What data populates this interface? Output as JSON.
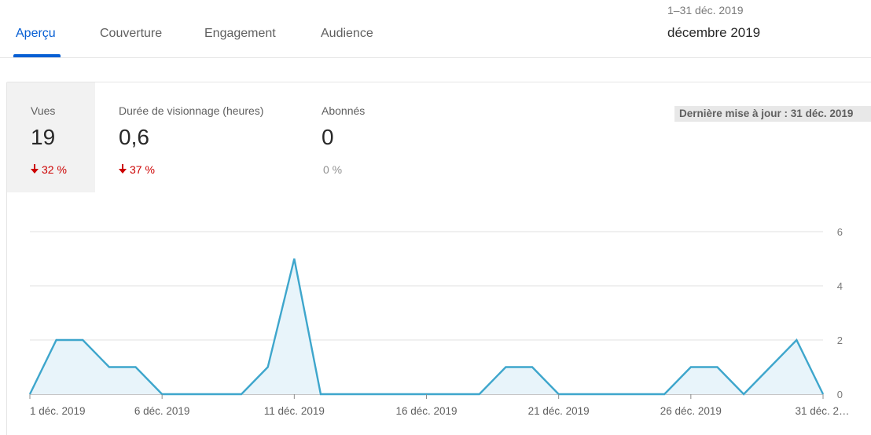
{
  "tabs": [
    {
      "label": "Aperçu",
      "active": true
    },
    {
      "label": "Couverture",
      "active": false
    },
    {
      "label": "Engagement",
      "active": false
    },
    {
      "label": "Audience",
      "active": false
    }
  ],
  "period": {
    "range": "1–31 déc. 2019",
    "label": "décembre 2019"
  },
  "metrics": [
    {
      "label": "Vues",
      "value": "19",
      "delta": "32 %",
      "trend": "down"
    },
    {
      "label": "Durée de visionnage (heures)",
      "value": "0,6",
      "delta": "37 %",
      "trend": "down"
    },
    {
      "label": "Abonnés",
      "value": "0",
      "delta": "0 %",
      "trend": "flat"
    }
  ],
  "last_update": "Dernière mise à jour : 31 déc. 2019",
  "colors": {
    "accent": "#065fd4",
    "line": "#3ea6cc",
    "area": "#e8f4fa",
    "negative": "#cc0000"
  },
  "chart_data": {
    "type": "area",
    "x": [
      "1 déc. 2019",
      "2 déc. 2019",
      "3 déc. 2019",
      "4 déc. 2019",
      "5 déc. 2019",
      "6 déc. 2019",
      "7 déc. 2019",
      "8 déc. 2019",
      "9 déc. 2019",
      "10 déc. 2019",
      "11 déc. 2019",
      "12 déc. 2019",
      "13 déc. 2019",
      "14 déc. 2019",
      "15 déc. 2019",
      "16 déc. 2019",
      "17 déc. 2019",
      "18 déc. 2019",
      "19 déc. 2019",
      "20 déc. 2019",
      "21 déc. 2019",
      "22 déc. 2019",
      "23 déc. 2019",
      "24 déc. 2019",
      "25 déc. 2019",
      "26 déc. 2019",
      "27 déc. 2019",
      "28 déc. 2019",
      "29 déc. 2019",
      "30 déc. 2019",
      "31 déc. 2019"
    ],
    "series": [
      {
        "values": [
          0,
          2,
          2,
          1,
          1,
          0,
          0,
          0,
          0,
          1,
          5,
          0,
          0,
          0,
          0,
          0,
          0,
          0,
          1,
          1,
          0,
          0,
          0,
          0,
          0,
          1,
          1,
          0,
          1,
          2,
          0
        ]
      }
    ],
    "x_ticks": [
      "1 déc. 2019",
      "6 déc. 2019",
      "11 déc. 2019",
      "16 déc. 2019",
      "21 déc. 2019",
      "26 déc. 2019",
      "31 déc. 2…"
    ],
    "x_tick_index": [
      0,
      5,
      10,
      15,
      20,
      25,
      30
    ],
    "y_ticks": [
      "0",
      "2",
      "4",
      "6"
    ],
    "ylim": [
      0,
      6
    ],
    "grid": true
  }
}
